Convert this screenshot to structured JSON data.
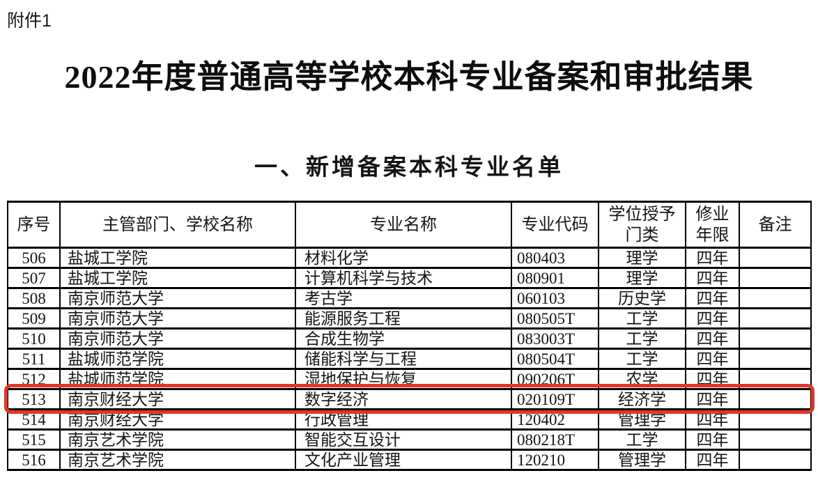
{
  "page": {
    "attachment_label": "附件1",
    "title": "2022年度普通高等学校本科专业备案和审批结果",
    "section_heading": "一、新增备案本科专业名单"
  },
  "table": {
    "columns": [
      {
        "key": "no",
        "label": "序号"
      },
      {
        "key": "school",
        "label": "主管部门、学校名称"
      },
      {
        "key": "major",
        "label": "专业名称"
      },
      {
        "key": "code",
        "label": "专业代码"
      },
      {
        "key": "degree",
        "label": "学位授予\n门类"
      },
      {
        "key": "years",
        "label": "修业\n年限"
      },
      {
        "key": "note",
        "label": "备注"
      }
    ],
    "rows": [
      {
        "no": "506",
        "school": "盐城工学院",
        "major": "材料化学",
        "code": "080403",
        "degree": "理学",
        "years": "四年",
        "note": ""
      },
      {
        "no": "507",
        "school": "盐城工学院",
        "major": "计算机科学与技术",
        "code": "080901",
        "degree": "理学",
        "years": "四年",
        "note": ""
      },
      {
        "no": "508",
        "school": "南京师范大学",
        "major": "考古学",
        "code": "060103",
        "degree": "历史学",
        "years": "四年",
        "note": ""
      },
      {
        "no": "509",
        "school": "南京师范大学",
        "major": "能源服务工程",
        "code": "080505T",
        "degree": "工学",
        "years": "四年",
        "note": ""
      },
      {
        "no": "510",
        "school": "南京师范大学",
        "major": "合成生物学",
        "code": "083003T",
        "degree": "工学",
        "years": "四年",
        "note": ""
      },
      {
        "no": "511",
        "school": "盐城师范学院",
        "major": "储能科学与工程",
        "code": "080504T",
        "degree": "工学",
        "years": "四年",
        "note": ""
      },
      {
        "no": "512",
        "school": "盐城师范学院",
        "major": "湿地保护与恢复",
        "code": "090206T",
        "degree": "农学",
        "years": "四年",
        "note": ""
      },
      {
        "no": "513",
        "school": "南京财经大学",
        "major": "数字经济",
        "code": "020109T",
        "degree": "经济学",
        "years": "四年",
        "note": ""
      },
      {
        "no": "514",
        "school": "南京财经大学",
        "major": "行政管理",
        "code": "120402",
        "degree": "管理学",
        "years": "四年",
        "note": ""
      },
      {
        "no": "515",
        "school": "南京艺术学院",
        "major": "智能交互设计",
        "code": "080218T",
        "degree": "工学",
        "years": "四年",
        "note": ""
      },
      {
        "no": "516",
        "school": "南京艺术学院",
        "major": "文化产业管理",
        "code": "120210",
        "degree": "管理学",
        "years": "四年",
        "note": ""
      }
    ],
    "highlight": {
      "row_no": "513",
      "color": "#e13728"
    }
  }
}
